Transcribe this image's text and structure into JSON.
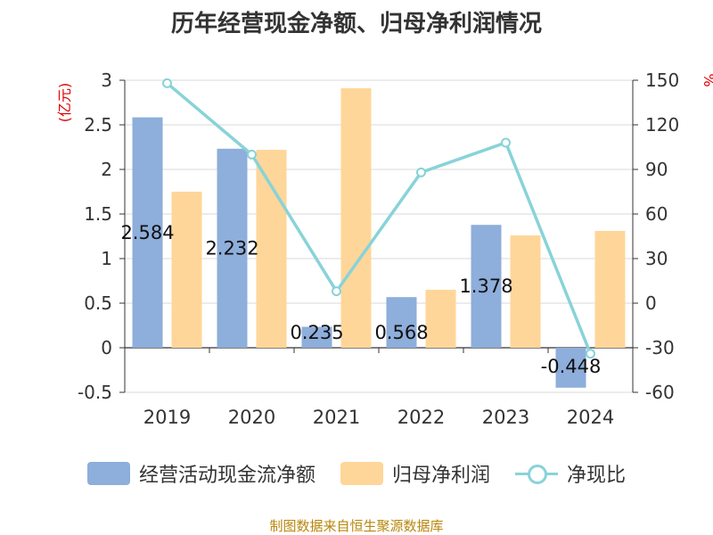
{
  "title": "历年经营现金净额、归母净利润情况",
  "source": "制图数据来自恒生聚源数据库",
  "chart_data": {
    "type": "bar",
    "categories": [
      "2019",
      "2020",
      "2021",
      "2022",
      "2023",
      "2024"
    ],
    "series": [
      {
        "name": "经营活动现金流净额",
        "axis": "left",
        "kind": "bar",
        "color": "#8eaedb",
        "values": [
          2.584,
          2.232,
          0.235,
          0.568,
          1.378,
          -0.448
        ],
        "labels": [
          "2.584",
          "2.232",
          "0.235",
          "0.568",
          "1.378",
          "-0.448"
        ]
      },
      {
        "name": "归母净利润",
        "axis": "left",
        "kind": "bar",
        "color": "#ffd699",
        "values": [
          1.75,
          2.22,
          2.91,
          0.65,
          1.26,
          1.31
        ]
      },
      {
        "name": "净现比",
        "axis": "right",
        "kind": "line",
        "color": "#88d3d8",
        "values": [
          148,
          100,
          8,
          88,
          108,
          -34
        ]
      }
    ],
    "ylabel": "(亿元)",
    "y2label": "%",
    "ylim": [
      -0.5,
      3
    ],
    "yticks": [
      "-0.5",
      "0",
      "0.5",
      "1",
      "1.5",
      "2",
      "2.5",
      "3"
    ],
    "y2lim": [
      -60,
      150
    ],
    "y2ticks": [
      "-60",
      "-30",
      "0",
      "30",
      "60",
      "90",
      "120",
      "150"
    ],
    "grid": true,
    "legend_position": "bottom"
  }
}
